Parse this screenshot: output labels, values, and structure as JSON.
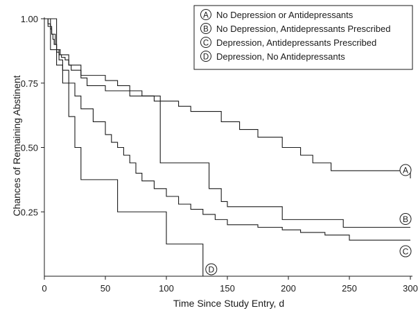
{
  "chart_data": {
    "type": "line",
    "step": true,
    "xlabel": "Time Since Study Entry, d",
    "ylabel": "Chances of Remaining Abstinent",
    "xlim": [
      0,
      300
    ],
    "ylim": [
      0,
      1
    ],
    "xticks": [
      0,
      50,
      100,
      150,
      200,
      250,
      300
    ],
    "xtick_labels": [
      "0",
      "50",
      "100",
      "150",
      "200",
      "250",
      "300"
    ],
    "yticks": [
      0.25,
      0.5,
      0.75,
      1.0
    ],
    "ytick_labels": [
      "0.25",
      "0.50",
      "0.75",
      "1.00"
    ],
    "grid": false,
    "legend_position": "top-right",
    "line_color": "#1a1a1a",
    "series": [
      {
        "name": "No Depression or Antidepressants",
        "marker": "A",
        "x": [
          0,
          3,
          5,
          6,
          7,
          8,
          10,
          12,
          14,
          17,
          20,
          22,
          30,
          50,
          60,
          70,
          80,
          95,
          110,
          120,
          145,
          160,
          175,
          195,
          210,
          220,
          235,
          300
        ],
        "y": [
          1.0,
          0.98,
          0.96,
          0.94,
          0.92,
          0.9,
          0.88,
          0.86,
          0.85,
          0.84,
          0.82,
          0.8,
          0.78,
          0.76,
          0.74,
          0.72,
          0.7,
          0.68,
          0.66,
          0.64,
          0.6,
          0.57,
          0.54,
          0.5,
          0.47,
          0.44,
          0.41,
          0.38
        ]
      },
      {
        "name": "No Depression, Antidepressants Prescribed",
        "marker": "B",
        "x": [
          0,
          8,
          10,
          13,
          20,
          30,
          35,
          50,
          70,
          90,
          95,
          105,
          135,
          145,
          150,
          195,
          245,
          300
        ],
        "y": [
          1.0,
          1.0,
          0.88,
          0.86,
          0.82,
          0.77,
          0.74,
          0.72,
          0.7,
          0.68,
          0.44,
          0.44,
          0.34,
          0.29,
          0.27,
          0.22,
          0.19,
          0.19
        ]
      },
      {
        "name": "Depression, Antidepressants Prescribed",
        "marker": "C",
        "x": [
          0,
          3,
          6,
          9,
          10,
          12,
          15,
          20,
          25,
          30,
          40,
          50,
          55,
          60,
          65,
          70,
          75,
          80,
          90,
          100,
          110,
          120,
          130,
          140,
          150,
          175,
          195,
          210,
          230,
          250,
          300
        ],
        "y": [
          1.0,
          0.97,
          0.94,
          0.9,
          0.87,
          0.84,
          0.8,
          0.75,
          0.7,
          0.65,
          0.6,
          0.55,
          0.52,
          0.5,
          0.47,
          0.44,
          0.4,
          0.37,
          0.34,
          0.31,
          0.28,
          0.26,
          0.24,
          0.22,
          0.2,
          0.19,
          0.18,
          0.17,
          0.16,
          0.14,
          0.14
        ]
      },
      {
        "name": "Depression, No Antidepressants",
        "marker": "D",
        "x": [
          0,
          5,
          10,
          15,
          20,
          25,
          30,
          60,
          100,
          130,
          130
        ],
        "y": [
          1.0,
          0.88,
          0.82,
          0.75,
          0.62,
          0.5,
          0.375,
          0.25,
          0.125,
          0.125,
          0.0
        ]
      }
    ]
  }
}
